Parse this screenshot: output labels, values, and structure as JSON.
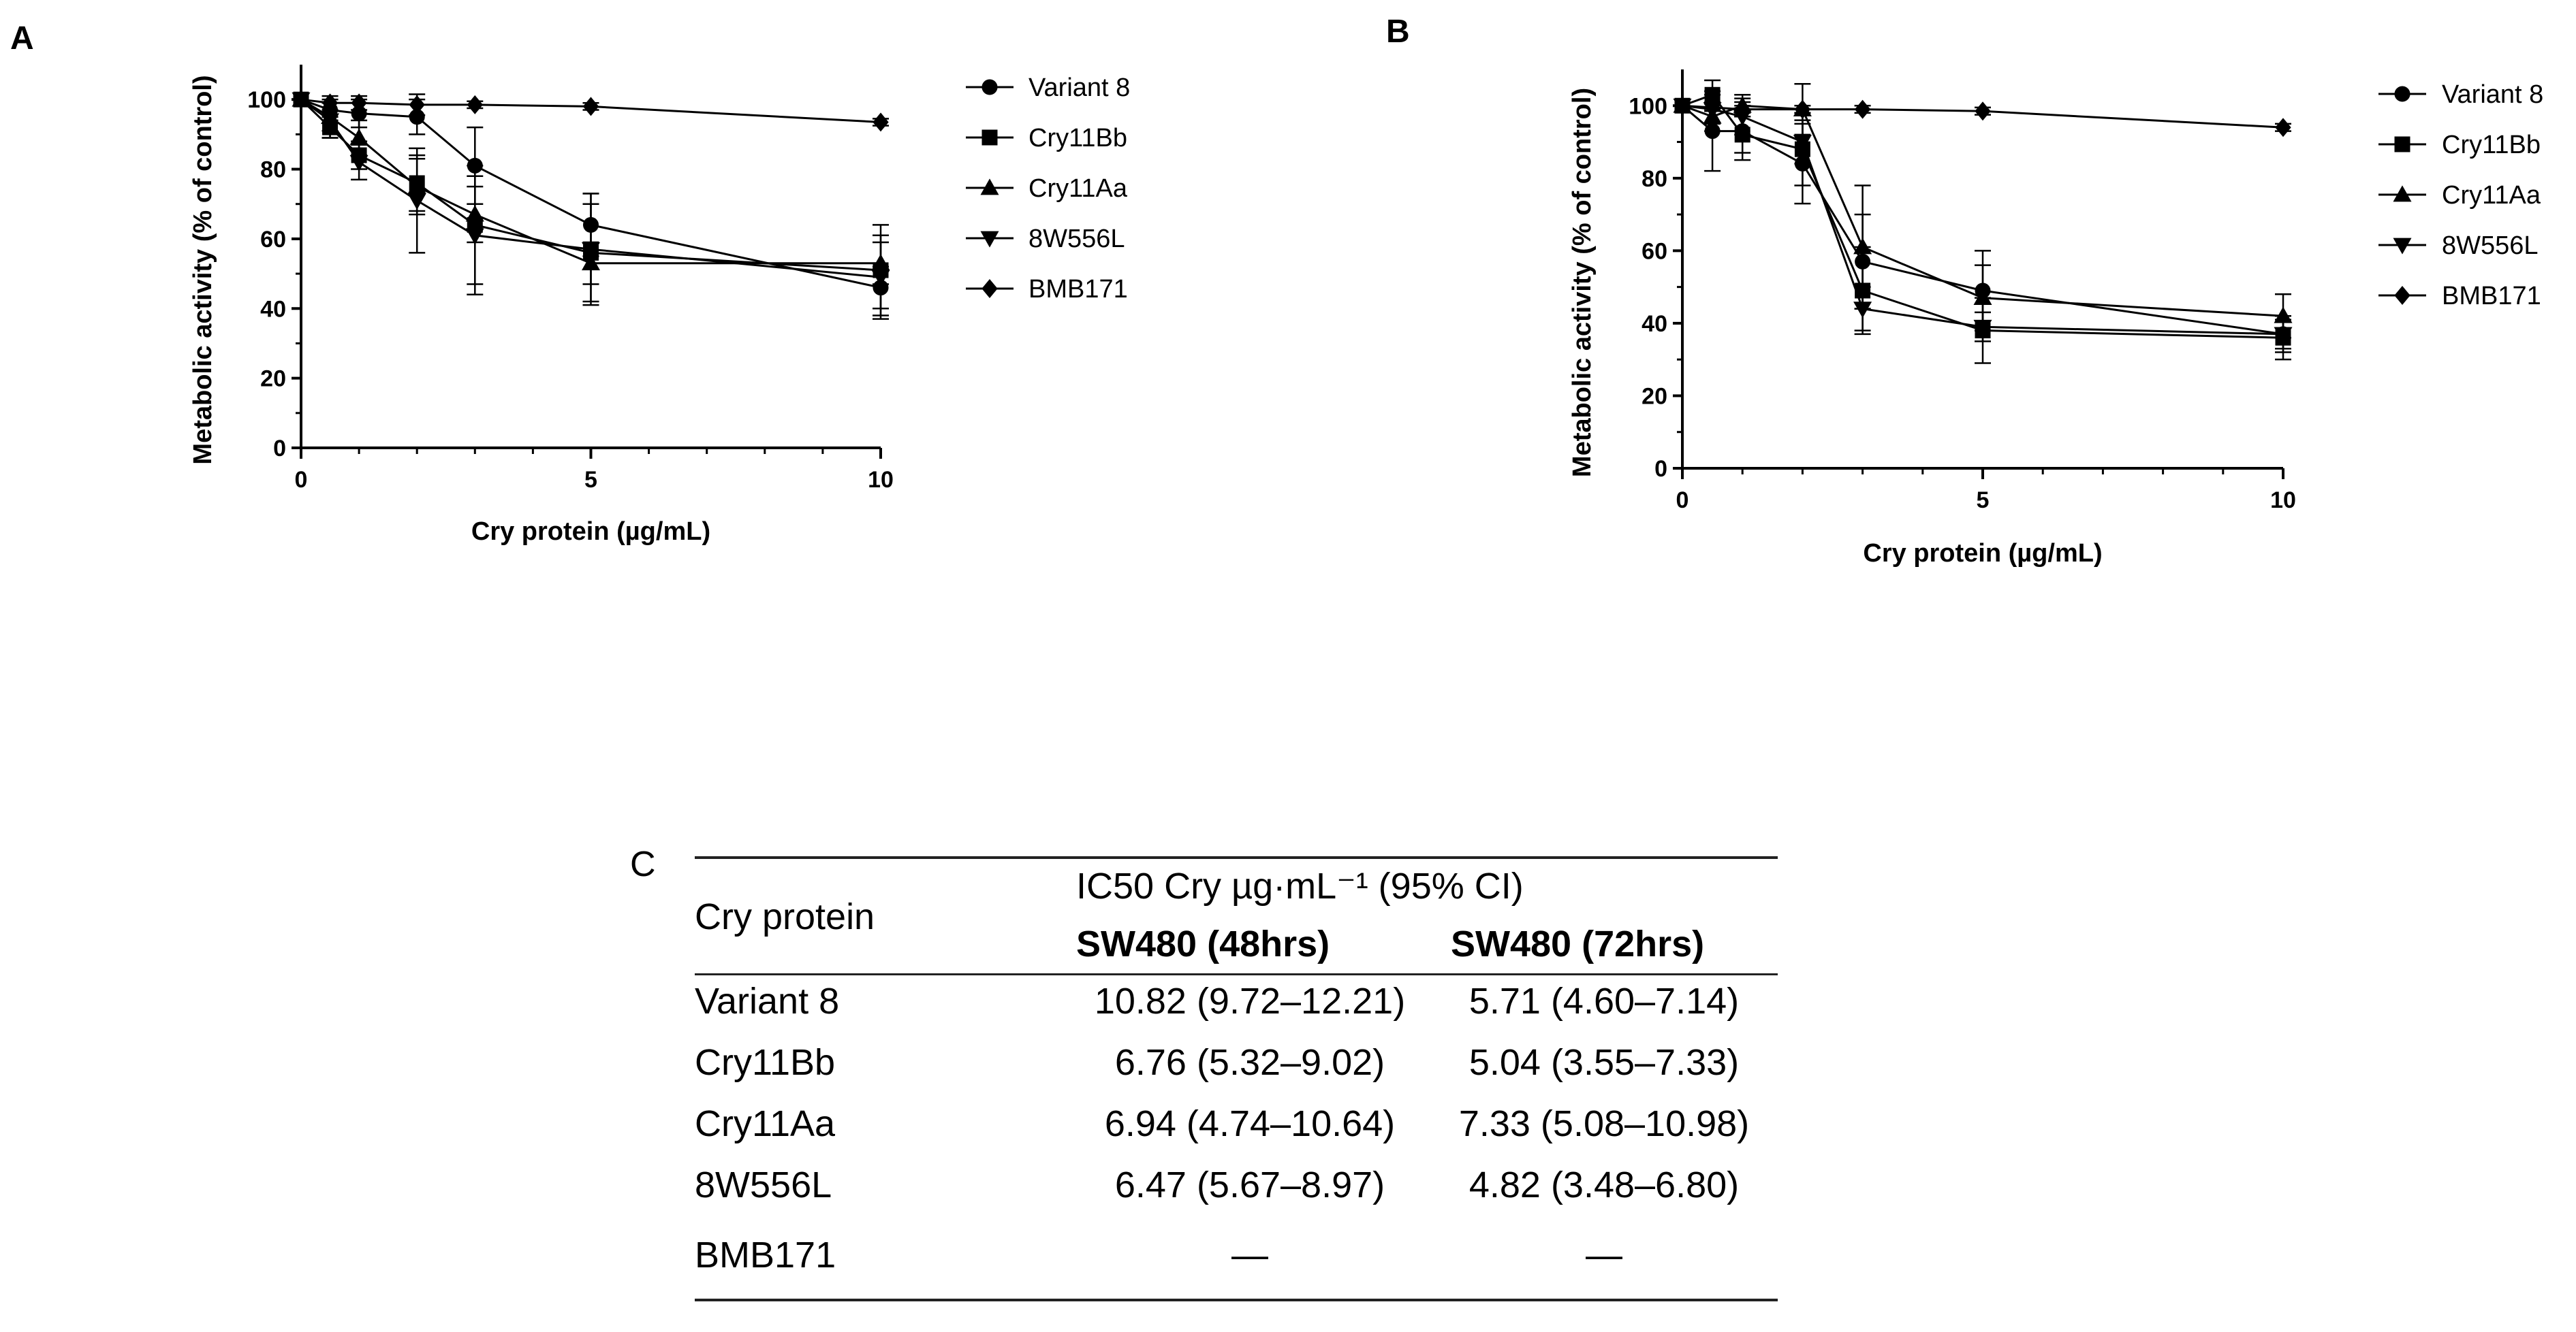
{
  "chart_data": [
    {
      "type": "line",
      "panel": "A",
      "xlabel": "Cry protein (µg/mL)",
      "ylabel": "Metabolic activity (% of control)",
      "xlim": [
        0,
        10
      ],
      "ylim": [
        0,
        110
      ],
      "xticks": [
        0,
        5,
        10
      ],
      "yticks": [
        0,
        20,
        40,
        60,
        80,
        100
      ],
      "x": [
        0,
        0.5,
        1,
        2,
        3,
        5,
        10
      ],
      "series": [
        {
          "name": "Variant 8",
          "marker": "circle",
          "values": [
            100,
            97,
            96,
            95,
            81,
            64,
            46
          ],
          "errors": [
            0,
            3,
            4,
            5,
            11,
            9,
            6
          ]
        },
        {
          "name": "Cry11Bb",
          "marker": "square",
          "values": [
            100,
            92,
            84,
            76,
            64,
            56,
            51
          ],
          "errors": [
            0,
            3,
            4,
            8,
            17,
            14,
            13
          ]
        },
        {
          "name": "Cry11Aa",
          "marker": "triangle-up",
          "values": [
            100,
            95,
            89,
            75,
            67,
            53,
            53
          ],
          "errors": [
            0,
            4,
            5,
            8,
            8,
            6,
            6
          ]
        },
        {
          "name": "8W556L",
          "marker": "triangle-down",
          "values": [
            100,
            94,
            82,
            71,
            61,
            57,
            49
          ],
          "errors": [
            0,
            5,
            5,
            15,
            17,
            16,
            12
          ]
        },
        {
          "name": "BMB171",
          "marker": "diamond",
          "values": [
            100,
            99,
            99,
            98.5,
            98.5,
            98,
            93.5
          ],
          "errors": [
            0,
            2,
            2,
            3,
            1,
            1,
            1
          ]
        }
      ]
    },
    {
      "type": "line",
      "panel": "B",
      "xlabel": "Cry protein (µg/mL)",
      "ylabel": "Metabolic activity (% of control)",
      "xlim": [
        0,
        10
      ],
      "ylim": [
        0,
        110
      ],
      "xticks": [
        0,
        5,
        10
      ],
      "yticks": [
        0,
        20,
        40,
        60,
        80,
        100
      ],
      "x": [
        0,
        0.5,
        1,
        2,
        3,
        5,
        10
      ],
      "series": [
        {
          "name": "Variant 8",
          "marker": "circle",
          "values": [
            100,
            93,
            93,
            84,
            57,
            49,
            37
          ],
          "errors": [
            0,
            11,
            8,
            11,
            13,
            11,
            5
          ]
        },
        {
          "name": "Cry11Bb",
          "marker": "square",
          "values": [
            100,
            103,
            92,
            88,
            49,
            38,
            36
          ],
          "errors": [
            0,
            4,
            5,
            10,
            12,
            9,
            6
          ]
        },
        {
          "name": "Cry11Aa",
          "marker": "triangle-up",
          "values": [
            100,
            97,
            100,
            99,
            61,
            47,
            42
          ],
          "errors": [
            0,
            4,
            3,
            7,
            17,
            9,
            6
          ]
        },
        {
          "name": "8W556L",
          "marker": "triangle-down",
          "values": [
            100,
            99,
            97,
            90,
            44,
            39,
            37
          ],
          "errors": [
            0,
            4,
            5,
            6,
            6,
            4,
            4
          ]
        },
        {
          "name": "BMB171",
          "marker": "diamond",
          "values": [
            100,
            99.5,
            99,
            99,
            99,
            98.5,
            94
          ],
          "errors": [
            0,
            1,
            1,
            1,
            1,
            1,
            1
          ]
        }
      ]
    }
  ],
  "table_c": {
    "label": "C",
    "col0_header": "Cry protein",
    "group_header": "IC50 Cry µg·mL⁻¹ (95% CI)",
    "col1_header": "SW480 (48hrs)",
    "col2_header": "SW480 (72hrs)",
    "rows": [
      {
        "protein": "Variant 8",
        "h48": "10.82 (9.72–12.21)",
        "h72": "5.71 (4.60–7.14)"
      },
      {
        "protein": "Cry11Bb",
        "h48": "6.76 (5.32–9.02)",
        "h72": "5.04 (3.55–7.33)"
      },
      {
        "protein": "Cry11Aa",
        "h48": "6.94 (4.74–10.64)",
        "h72": "7.33 (5.08–10.98)"
      },
      {
        "protein": "8W556L",
        "h48": "6.47 (5.67–8.97)",
        "h72": "4.82 (3.48–6.80)"
      },
      {
        "protein": "BMB171",
        "h48": "—",
        "h72": "—"
      }
    ]
  }
}
